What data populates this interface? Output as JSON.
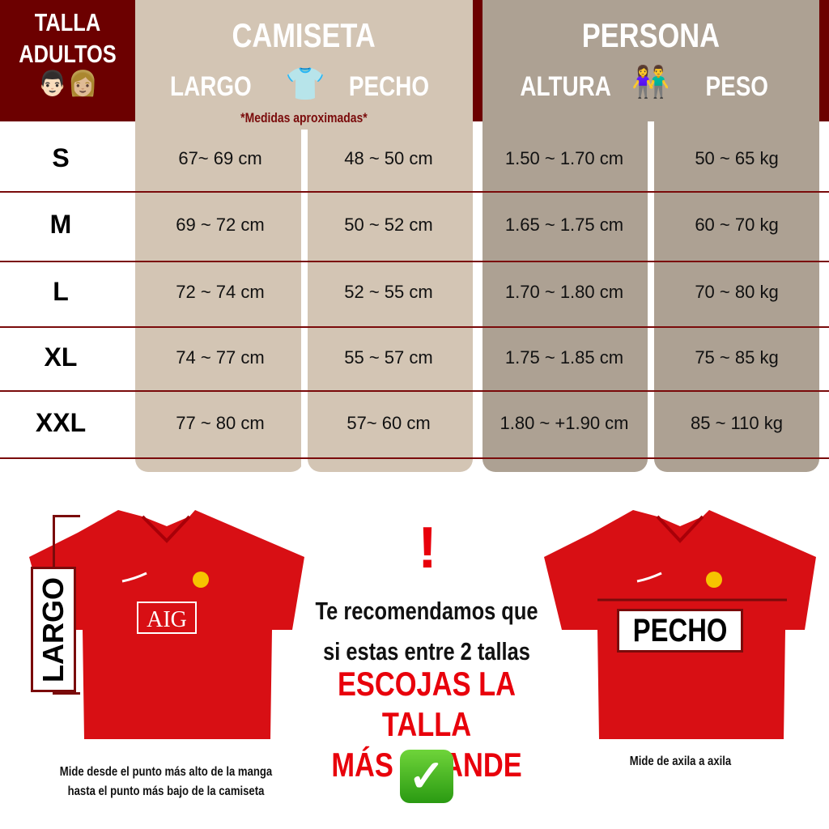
{
  "header": {
    "size_title_line1": "TALLA",
    "size_title_line2": "ADULTOS",
    "size_emojis": "👨🏻👩🏼",
    "shirt_title": "CAMISETA",
    "shirt_col1": "LARGO",
    "shirt_col2": "PECHO",
    "shirt_icon": "👕",
    "note": "*Medidas aproximadas*",
    "person_title": "PERSONA",
    "person_col1": "ALTURA",
    "person_col2": "PESO",
    "person_icon": "👫"
  },
  "rows": [
    {
      "size": "S",
      "largo": "67~ 69 cm",
      "pecho": "48 ~ 50 cm",
      "altura": "1.50 ~ 1.70 cm",
      "peso": "50 ~ 65 kg"
    },
    {
      "size": "M",
      "largo": "69 ~ 72 cm",
      "pecho": "50 ~ 52 cm",
      "altura": "1.65 ~ 1.75 cm",
      "peso": "60 ~ 70 kg"
    },
    {
      "size": "L",
      "largo": "72 ~ 74 cm",
      "pecho": "52 ~ 55 cm",
      "altura": "1.70 ~ 1.80 cm",
      "peso": "70 ~ 80 kg"
    },
    {
      "size": "XL",
      "largo": "74 ~ 77 cm",
      "pecho": "55 ~ 57 cm",
      "altura": "1.75 ~ 1.85 cm",
      "peso": "75 ~ 85 kg"
    },
    {
      "size": "XXL",
      "largo": "77 ~ 80 cm",
      "pecho": "57~ 60 cm",
      "altura": "1.80 ~ +1.90 cm",
      "peso": "85 ~ 110 kg"
    }
  ],
  "bottom": {
    "largo_label": "LARGO",
    "largo_caption_1": "Mide desde el punto más alto de la manga",
    "largo_caption_2": "hasta el punto más bajo de la camiseta",
    "pecho_label": "PECHO",
    "pecho_caption": "Mide de axila a axila",
    "sponsor": "AIG",
    "exclaim": "!",
    "recommend_1": "Te recomendamos que",
    "recommend_2": "si estas entre 2 tallas",
    "highlight_1": "ESCOJAS LA TALLA",
    "highlight_2": "MÁS GRANDE",
    "check": "✓"
  },
  "colors": {
    "maroon": "#6c0000",
    "shirt_panel": "#d3c5b4",
    "person_panel": "#ada193",
    "highlight": "#e8000b",
    "check": "#3cb01c"
  }
}
